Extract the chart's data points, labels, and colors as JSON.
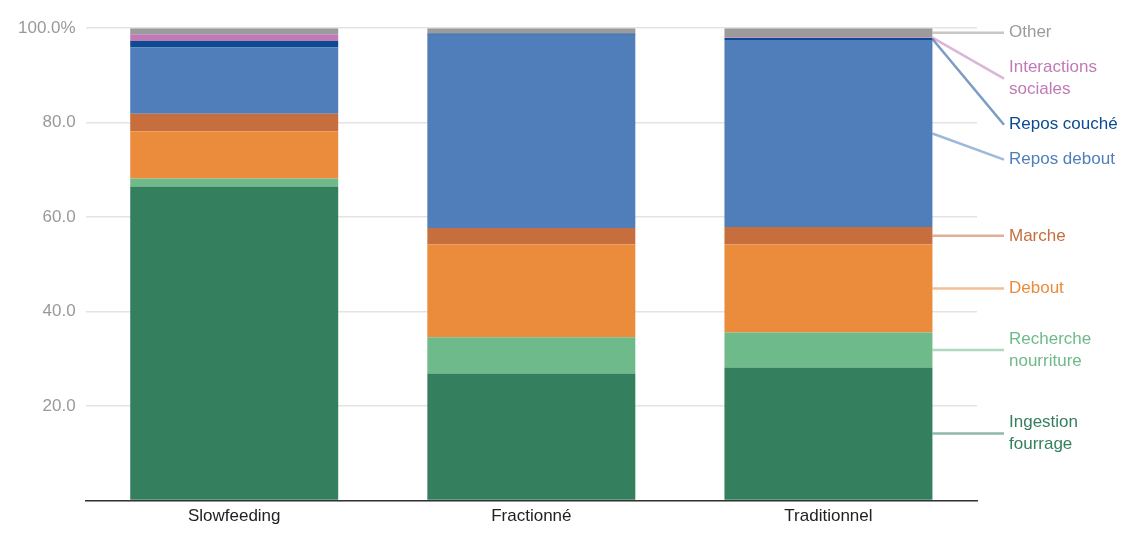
{
  "chart_data": {
    "type": "bar",
    "stacked": true,
    "categories": [
      "Slowfeeding",
      "Fractionné",
      "Traditionnel"
    ],
    "series": [
      {
        "name": "Ingestion fourrage",
        "color": "#347f5e",
        "values": [
          66.5,
          26.9,
          28.2
        ]
      },
      {
        "name": "Recherche nourriture",
        "color": "#6fba8a",
        "values": [
          1.7,
          7.7,
          7.4
        ]
      },
      {
        "name": "Debout",
        "color": "#eb8b3c",
        "values": [
          10.0,
          19.6,
          18.6
        ]
      },
      {
        "name": "Marche",
        "color": "#c66e3e",
        "values": [
          3.7,
          3.5,
          3.7
        ]
      },
      {
        "name": "Repos debout",
        "color": "#4f7ebb",
        "values": [
          14.0,
          40.9,
          39.6
        ]
      },
      {
        "name": "Repos couché",
        "color": "#0c4a92",
        "values": [
          1.4,
          0.3,
          0.4
        ]
      },
      {
        "name": "Interactions sociales",
        "color": "#c07ab5",
        "values": [
          1.4,
          0,
          0.2
        ]
      },
      {
        "name": "Other",
        "color": "#9b9b9b",
        "values": [
          1.3,
          1.1,
          1.9
        ]
      }
    ],
    "ylim": [
      0,
      100
    ],
    "yticks": [
      {
        "value": 0,
        "label": null
      },
      {
        "value": 20,
        "label": "20.0"
      },
      {
        "value": 40,
        "label": "40.0"
      },
      {
        "value": 60,
        "label": "60.0"
      },
      {
        "value": 80,
        "label": "80.0"
      },
      {
        "value": 100,
        "label": "100.0%"
      }
    ],
    "grid": "y",
    "legend": "right"
  }
}
